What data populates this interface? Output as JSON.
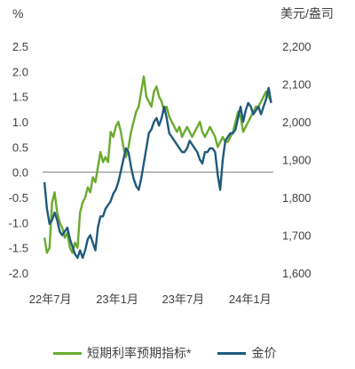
{
  "chart_data": {
    "type": "line",
    "left_axis": {
      "unit": "%",
      "ylim": [
        -2.0,
        2.5
      ],
      "ticks": [
        "2.5",
        "2.0",
        "1.5",
        "1.0",
        "0.5",
        "0.0",
        "-0.5",
        "-1.0",
        "-1.5",
        "-2.0"
      ]
    },
    "right_axis": {
      "unit": "美元/盎司",
      "ylim": [
        1600,
        2200
      ],
      "ticks": [
        "2,200",
        "2,100",
        "2,000",
        "1,900",
        "1,800",
        "1,700",
        "1,600"
      ]
    },
    "x_axis": {
      "ticks": [
        "22年7月",
        "23年1月",
        "23年7月",
        "24年1月"
      ]
    },
    "colors": {
      "short_rate": "#6aaa2e",
      "gold": "#1f5a7a",
      "axis": "#7f7f7f"
    },
    "legend_position": "bottom",
    "grid": false,
    "series": [
      {
        "name": "短期利率预期指标*",
        "axis": "left",
        "x": [
          "2022-06-15",
          "2022-06-22",
          "2022-06-29",
          "2022-07-06",
          "2022-07-13",
          "2022-07-20",
          "2022-07-27",
          "2022-08-03",
          "2022-08-10",
          "2022-08-17",
          "2022-08-24",
          "2022-08-31",
          "2022-09-07",
          "2022-09-14",
          "2022-09-21",
          "2022-09-28",
          "2022-10-05",
          "2022-10-12",
          "2022-10-19",
          "2022-10-26",
          "2022-11-02",
          "2022-11-09",
          "2022-11-16",
          "2022-11-23",
          "2022-11-30",
          "2022-12-07",
          "2022-12-14",
          "2022-12-21",
          "2022-12-28",
          "2023-01-04",
          "2023-01-11",
          "2023-01-18",
          "2023-01-25",
          "2023-02-01",
          "2023-02-08",
          "2023-02-15",
          "2023-02-22",
          "2023-03-01",
          "2023-03-08",
          "2023-03-15",
          "2023-03-22",
          "2023-03-29",
          "2023-04-05",
          "2023-04-12",
          "2023-04-19",
          "2023-04-26",
          "2023-05-03",
          "2023-05-10",
          "2023-05-17",
          "2023-05-24",
          "2023-05-31",
          "2023-06-07",
          "2023-06-14",
          "2023-06-21",
          "2023-06-28",
          "2023-07-05",
          "2023-07-12",
          "2023-07-19",
          "2023-07-26",
          "2023-08-02",
          "2023-08-09",
          "2023-08-16",
          "2023-08-23",
          "2023-08-30",
          "2023-09-06",
          "2023-09-13",
          "2023-09-20",
          "2023-09-27",
          "2023-10-04",
          "2023-10-11",
          "2023-10-18",
          "2023-10-25",
          "2023-11-01",
          "2023-11-08",
          "2023-11-15",
          "2023-11-22",
          "2023-11-29",
          "2023-12-06",
          "2023-12-13",
          "2023-12-20",
          "2023-12-27",
          "2024-01-03",
          "2024-01-10",
          "2024-01-17",
          "2024-01-24",
          "2024-01-31",
          "2024-02-07",
          "2024-02-14",
          "2024-02-21",
          "2024-02-28"
        ],
        "values": [
          -1.3,
          -1.6,
          -1.5,
          -0.6,
          -0.4,
          -0.8,
          -1.0,
          -1.1,
          -1.3,
          -1.2,
          -1.5,
          -1.6,
          -1.4,
          -1.5,
          -0.8,
          -0.6,
          -0.5,
          -0.3,
          -0.4,
          -0.1,
          -0.2,
          0.1,
          0.4,
          0.2,
          0.3,
          0.2,
          0.8,
          0.7,
          0.9,
          1.0,
          0.8,
          0.5,
          0.3,
          0.5,
          0.8,
          1.0,
          1.2,
          1.3,
          1.6,
          1.9,
          1.5,
          1.4,
          1.3,
          1.6,
          1.7,
          1.5,
          1.4,
          1.2,
          1.3,
          1.1,
          1.0,
          0.9,
          0.8,
          0.9,
          0.7,
          0.8,
          0.9,
          0.8,
          0.7,
          0.8,
          0.9,
          1.0,
          0.8,
          0.7,
          0.8,
          0.9,
          0.8,
          0.7,
          0.5,
          0.6,
          0.7,
          0.6,
          0.6,
          0.7,
          0.8,
          1.0,
          1.2,
          1.1,
          0.8,
          0.9,
          1.0,
          1.1,
          1.2,
          1.3,
          1.3,
          1.4,
          1.5,
          1.6,
          1.5,
          1.4
        ]
      },
      {
        "name": "金价",
        "axis": "right",
        "x": [
          "2022-06-15",
          "2022-06-22",
          "2022-06-29",
          "2022-07-06",
          "2022-07-13",
          "2022-07-20",
          "2022-07-27",
          "2022-08-03",
          "2022-08-10",
          "2022-08-17",
          "2022-08-24",
          "2022-08-31",
          "2022-09-07",
          "2022-09-14",
          "2022-09-21",
          "2022-09-28",
          "2022-10-05",
          "2022-10-12",
          "2022-10-19",
          "2022-10-26",
          "2022-11-02",
          "2022-11-09",
          "2022-11-16",
          "2022-11-23",
          "2022-11-30",
          "2022-12-07",
          "2022-12-14",
          "2022-12-21",
          "2022-12-28",
          "2023-01-04",
          "2023-01-11",
          "2023-01-18",
          "2023-01-25",
          "2023-02-01",
          "2023-02-08",
          "2023-02-15",
          "2023-02-22",
          "2023-03-01",
          "2023-03-08",
          "2023-03-15",
          "2023-03-22",
          "2023-03-29",
          "2023-04-05",
          "2023-04-12",
          "2023-04-19",
          "2023-04-26",
          "2023-05-03",
          "2023-05-10",
          "2023-05-17",
          "2023-05-24",
          "2023-05-31",
          "2023-06-07",
          "2023-06-14",
          "2023-06-21",
          "2023-06-28",
          "2023-07-05",
          "2023-07-12",
          "2023-07-19",
          "2023-07-26",
          "2023-08-02",
          "2023-08-09",
          "2023-08-16",
          "2023-08-23",
          "2023-08-30",
          "2023-09-06",
          "2023-09-13",
          "2023-09-20",
          "2023-09-27",
          "2023-10-04",
          "2023-10-11",
          "2023-10-18",
          "2023-10-25",
          "2023-11-01",
          "2023-11-08",
          "2023-11-15",
          "2023-11-22",
          "2023-11-29",
          "2023-12-06",
          "2023-12-13",
          "2023-12-20",
          "2023-12-27",
          "2024-01-03",
          "2024-01-10",
          "2024-01-17",
          "2024-01-24",
          "2024-01-31",
          "2024-02-07",
          "2024-02-14",
          "2024-02-21",
          "2024-02-28"
        ],
        "values": [
          1840,
          1770,
          1730,
          1740,
          1760,
          1740,
          1710,
          1700,
          1710,
          1720,
          1690,
          1670,
          1650,
          1640,
          1660,
          1640,
          1660,
          1690,
          1700,
          1680,
          1660,
          1720,
          1750,
          1750,
          1770,
          1780,
          1790,
          1810,
          1820,
          1840,
          1870,
          1900,
          1930,
          1920,
          1880,
          1850,
          1830,
          1820,
          1850,
          1890,
          1930,
          1970,
          1980,
          2000,
          2010,
          1990,
          2010,
          2040,
          2010,
          1970,
          1960,
          1950,
          1940,
          1930,
          1920,
          1920,
          1930,
          1950,
          1940,
          1930,
          1920,
          1900,
          1890,
          1920,
          1920,
          1930,
          1930,
          1920,
          1860,
          1820,
          1900,
          1950,
          1960,
          1970,
          1970,
          1980,
          2010,
          2040,
          2000,
          2030,
          2050,
          2040,
          2020,
          2030,
          2040,
          2020,
          2040,
          2060,
          2090,
          2050
        ]
      }
    ]
  }
}
